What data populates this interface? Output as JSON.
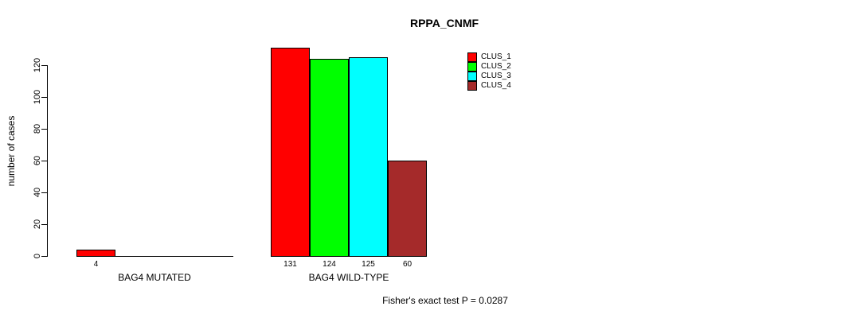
{
  "title": "RPPA_CNMF",
  "footer": "Fisher's exact test P = 0.0287",
  "chart_data": {
    "type": "bar",
    "title": "RPPA_CNMF",
    "xlabel": "",
    "ylabel": "number of cases",
    "categories": [
      "BAG4 MUTATED",
      "BAG4 WILD-TYPE"
    ],
    "series": [
      {
        "name": "CLUS_1",
        "color": "#FF0000",
        "values": [
          4,
          131
        ]
      },
      {
        "name": "CLUS_2",
        "color": "#00FF00",
        "values": [
          0,
          124
        ]
      },
      {
        "name": "CLUS_3",
        "color": "#00FFFF",
        "values": [
          0,
          125
        ]
      },
      {
        "name": "CLUS_4",
        "color": "#A52A2A",
        "values": [
          0,
          60
        ]
      }
    ],
    "bar_value_labels": [
      [
        "4",
        "",
        "",
        ""
      ],
      [
        "131",
        "124",
        "125",
        "60"
      ]
    ],
    "yticks": [
      0,
      20,
      40,
      60,
      80,
      100,
      120
    ],
    "ylim": [
      0,
      131
    ],
    "grid": false,
    "legend_position": "top-right",
    "legend": [
      "CLUS_1",
      "CLUS_2",
      "CLUS_3",
      "CLUS_4"
    ],
    "annotation": "Fisher's exact test P = 0.0287"
  }
}
